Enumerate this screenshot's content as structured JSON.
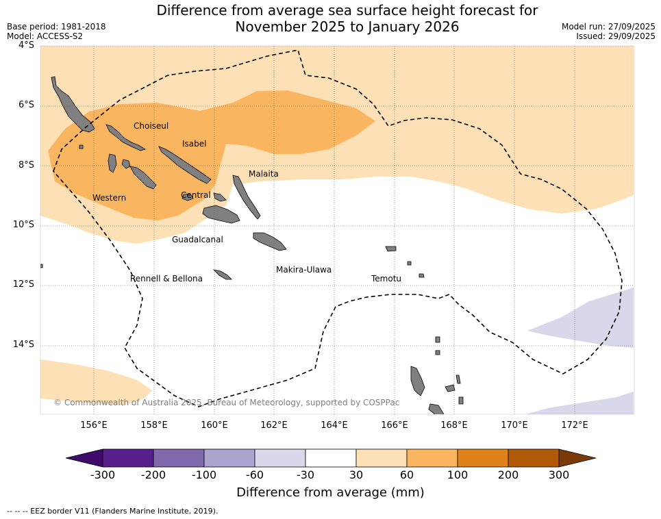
{
  "title": {
    "line1": "Difference from average sea surface height forecast for",
    "line2": "November 2025 to January 2026"
  },
  "meta_left": {
    "base_period": "Base period: 1981-2018",
    "model": "Model: ACCESS-S2"
  },
  "meta_right": {
    "model_run": "Model run: 27/09/2025",
    "issued": "Issued: 29/09/2025"
  },
  "lat_ticks": [
    "4°S",
    "6°S",
    "8°S",
    "10°S",
    "12°S",
    "14°S"
  ],
  "lon_ticks": [
    "156°E",
    "158°E",
    "160°E",
    "162°E",
    "164°E",
    "166°E",
    "168°E",
    "170°E",
    "172°E"
  ],
  "provinces": [
    "Choiseul",
    "Isabel",
    "Malaita",
    "Western",
    "Central",
    "Guadalcanal",
    "Makira-Ulawa",
    "Rennell & Bellona",
    "Temotu"
  ],
  "copyright": "© Commonwealth of Australia 2025, Bureau of Meteorology, supported by COSPPac",
  "colorbar": {
    "label": "Difference from average (mm)",
    "ticks": [
      "-300",
      "-200",
      "-100",
      "-60",
      "-30",
      "30",
      "60",
      "100",
      "200",
      "300"
    ],
    "colors": {
      "extend_low": "#3f0a6a",
      "bin_-300_-200": "#57208a",
      "bin_-200_-100": "#7e6aab",
      "bin_-100_-60": "#aba4cf",
      "bin_-60_-30": "#d8d8ea",
      "bin_-30_30": "#ffffff",
      "bin_30_60": "#fde0b5",
      "bin_60_100": "#fab560",
      "bin_100_200": "#e0821a",
      "bin_200_300": "#b05a08",
      "extend_high": "#7a3a06"
    }
  },
  "footnote": "--  --  -- EEZ border V11 (Flanders Marine Institute, 2019).",
  "map_colors": {
    "land": "#808080",
    "grid": "#555555",
    "eez": "#000000"
  }
}
